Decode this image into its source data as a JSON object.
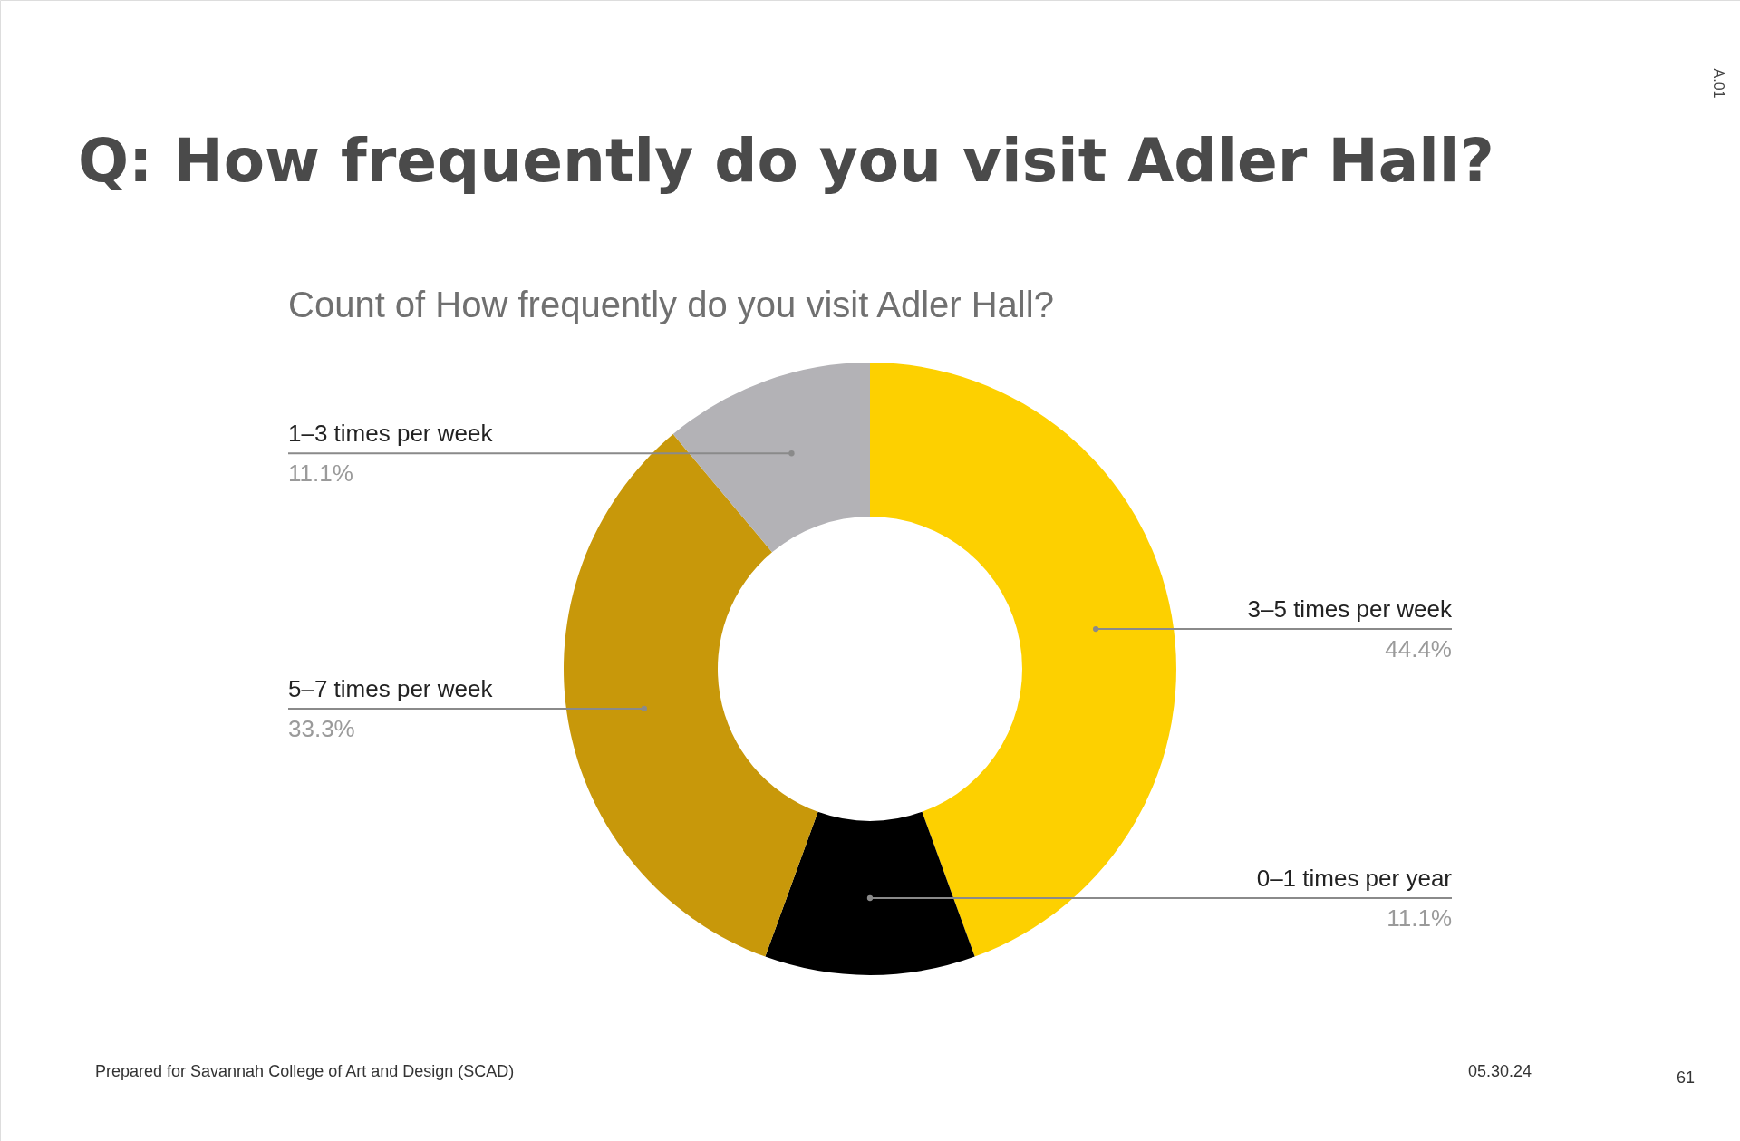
{
  "chart_data": {
    "type": "donut",
    "title": "Q: How frequently do you visit Adler Hall?",
    "subtitle": "Count of How frequently do you visit Adler Hall?",
    "categories": [
      "3–5 times per week",
      "0–1 times per year",
      "5–7 times per week",
      "1–3 times per week"
    ],
    "values": [
      44.4,
      11.1,
      33.3,
      11.1
    ],
    "colors": [
      "#fdd000",
      "#000000",
      "#c8980a",
      "#b3b2b6"
    ],
    "value_labels": [
      "44.4%",
      "11.1%",
      "33.3%",
      "11.1%"
    ],
    "annotations": [
      "Prepared for Savannah College of Art and Design (SCAD)",
      "05.30.24",
      "61",
      "A.01"
    ]
  }
}
